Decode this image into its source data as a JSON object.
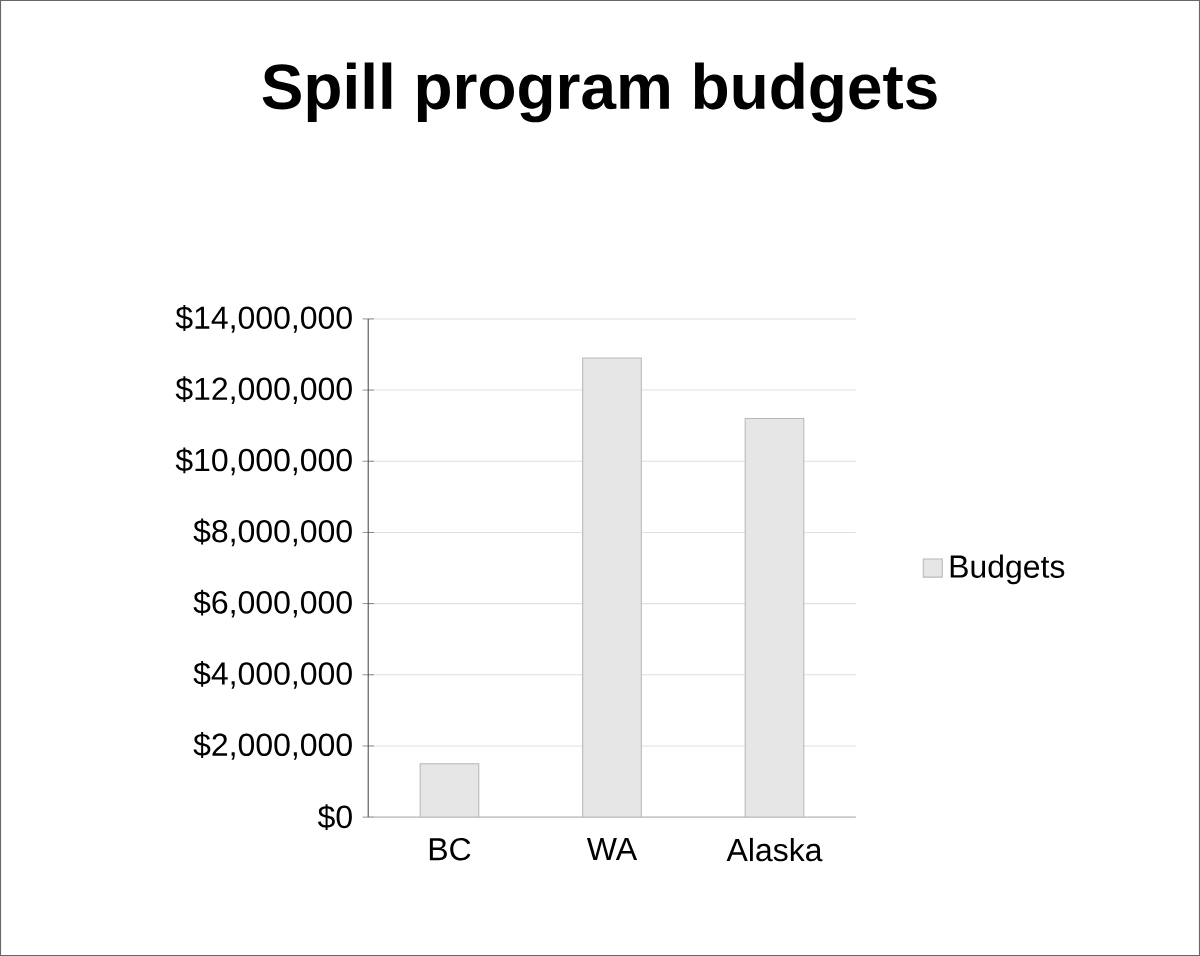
{
  "chart_data": {
    "type": "bar",
    "title": "Spill program budgets",
    "categories": [
      "BC",
      "WA",
      "Alaska"
    ],
    "series": [
      {
        "name": "Budgets",
        "color": "#e6e6e6",
        "values": [
          1500000,
          12900000,
          11200000
        ]
      }
    ],
    "ylim": [
      0,
      14000000
    ],
    "yticks": [
      {
        "value": 0,
        "label": "$0"
      },
      {
        "value": 2000000,
        "label": "$2,000,000"
      },
      {
        "value": 4000000,
        "label": "$4,000,000"
      },
      {
        "value": 6000000,
        "label": "$6,000,000"
      },
      {
        "value": 8000000,
        "label": "$8,000,000"
      },
      {
        "value": 10000000,
        "label": "$10,000,000"
      },
      {
        "value": 12000000,
        "label": "$12,000,000"
      },
      {
        "value": 14000000,
        "label": "$14,000,000"
      }
    ],
    "grid": "y",
    "legend": "right"
  }
}
